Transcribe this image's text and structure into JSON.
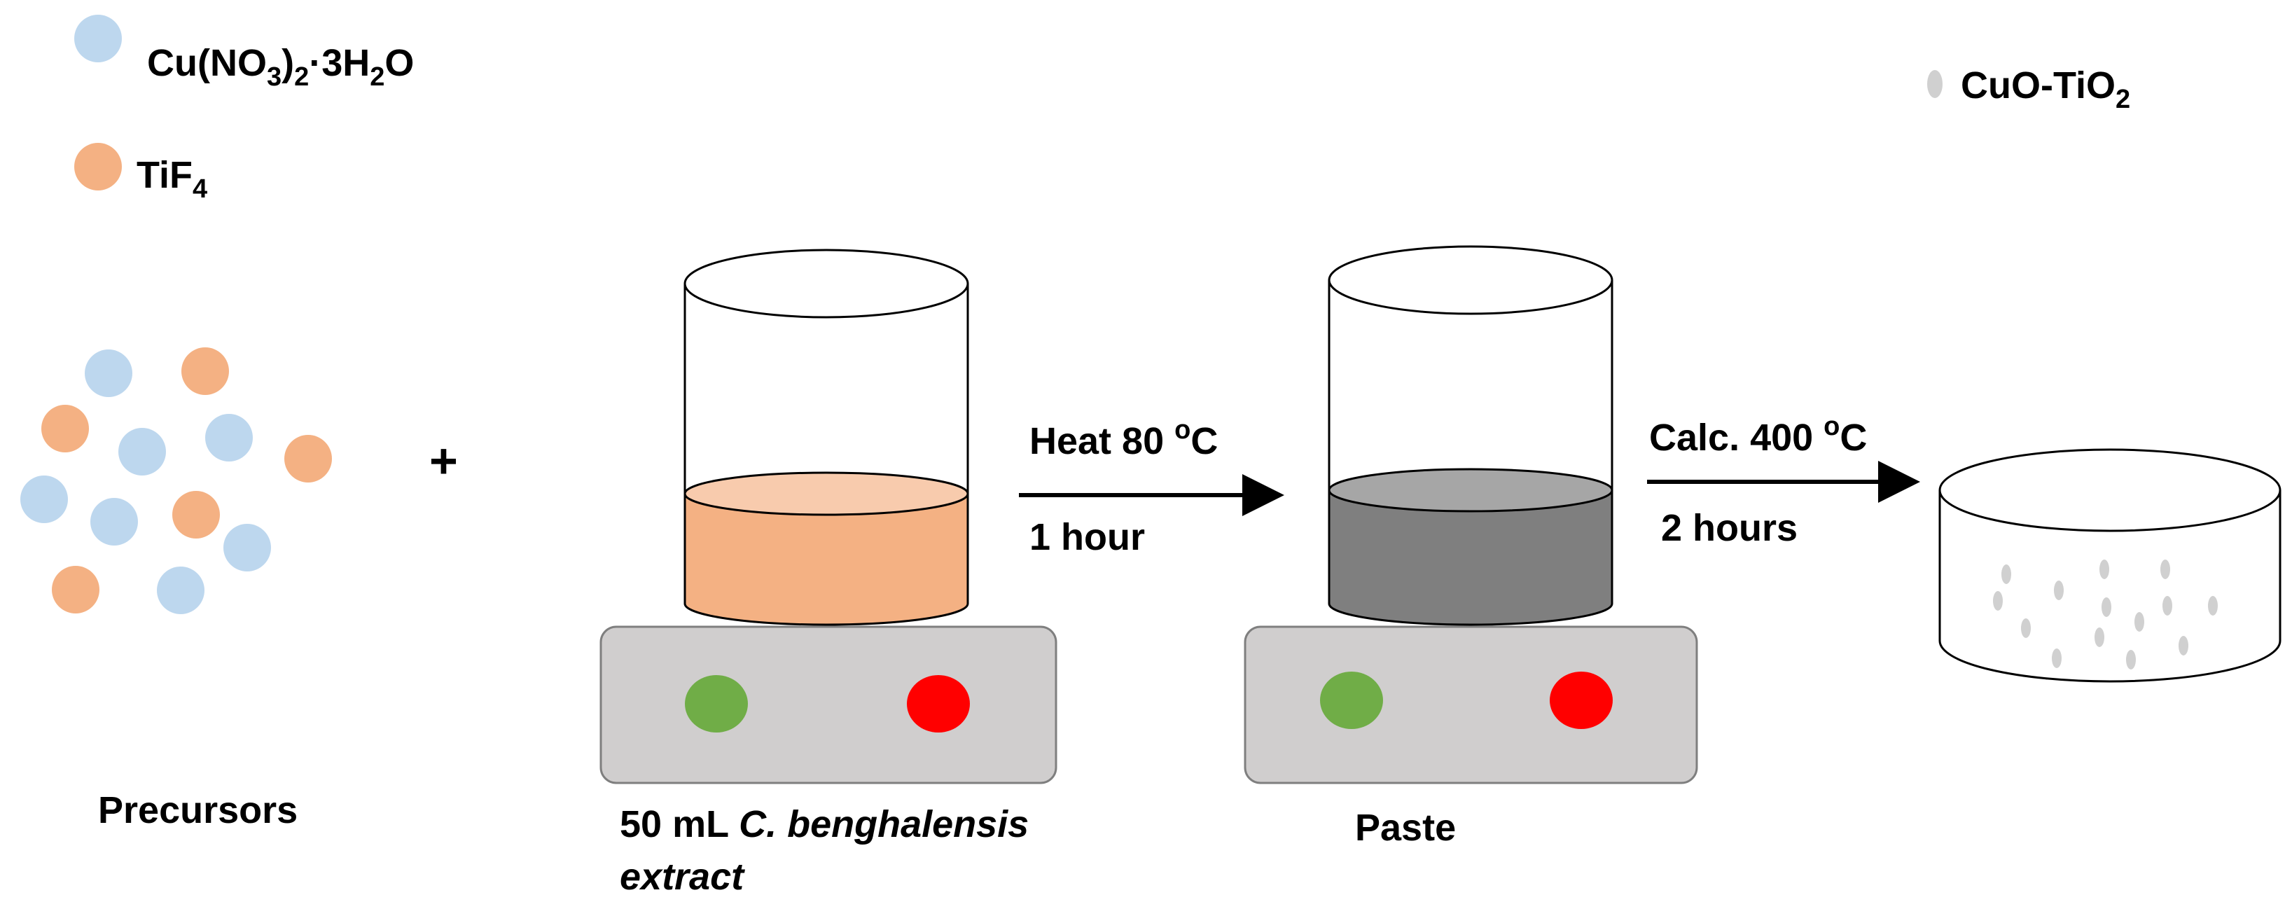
{
  "legend": {
    "cu_nitrate": {
      "base": "Cu(NO",
      "sub1": "3",
      "mid": ")",
      "sub2": "2",
      "rest": "·3H",
      "sub3": "2",
      "end": "O",
      "color": "#bdd7ee"
    },
    "tif4": {
      "base": "TiF",
      "sub1": "4",
      "color": "#f4b183"
    },
    "cuo_tio2": {
      "base": "CuO-TiO",
      "sub1": "2",
      "color": "#d0d0d0"
    }
  },
  "precursors_label": "Precursors",
  "plus_sign": "+",
  "step1": {
    "condition": {
      "base": "Heat 80 ",
      "sup": "o",
      "end": "C"
    },
    "duration": "1 hour",
    "beaker_liquid_color": "#f4b183",
    "label_line1_plain": "50 mL ",
    "label_line1_italic": "C. benghalensis",
    "label_line2_italic": "extract"
  },
  "step2": {
    "condition": {
      "base": "Calc. 400 ",
      "sup": "o",
      "end": "C"
    },
    "duration": "2 hours",
    "beaker_liquid_color": "#7f7f7f",
    "label": "Paste"
  },
  "hotplate": {
    "body_color": "#d0cece",
    "green_color": "#70ad47",
    "red_color": "#ff0000"
  }
}
